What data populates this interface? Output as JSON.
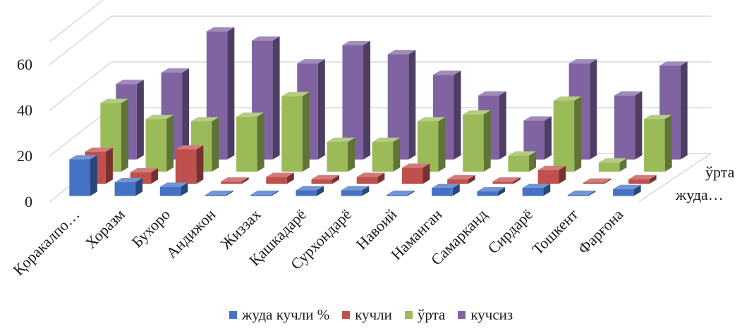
{
  "chart_data": {
    "type": "bar",
    "subtype": "3d-column",
    "title": "",
    "xlabel": "",
    "ylabel": "",
    "ylim": [
      0,
      70
    ],
    "yticks": [
      0,
      20,
      40,
      60
    ],
    "grid": true,
    "legend_position": "bottom",
    "categories": [
      "Қоракалпо…",
      "Хоразм",
      "Бухоро",
      "Андижон",
      "Жиззах",
      "Қашкадарё",
      "Сурхондарё",
      "Навоий",
      "Наманган",
      "Самарканд",
      "Сирдарё",
      "Тошкент",
      "Фарғона"
    ],
    "depth_labels": [
      "ўрта",
      "жуда…"
    ],
    "series": [
      {
        "name": "жуда кучли %",
        "color": "#4472C4",
        "values": [
          16,
          6,
          4,
          0.5,
          0.5,
          2.5,
          2.5,
          0.5,
          3.5,
          2,
          3.5,
          0.5,
          3
        ]
      },
      {
        "name": "кучли",
        "color": "#C0504D",
        "values": [
          14,
          5,
          15,
          1,
          3,
          2,
          3,
          7,
          2,
          1,
          6,
          0.5,
          2
        ]
      },
      {
        "name": "ўрта",
        "color": "#9BBB59",
        "values": [
          30,
          23,
          22,
          24,
          33,
          13,
          13,
          22,
          25,
          7,
          31,
          4,
          23
        ]
      },
      {
        "name": "кучсиз",
        "color": "#8064A2",
        "values": [
          33,
          38,
          56,
          52,
          42,
          50,
          46,
          37,
          28,
          17,
          42,
          28,
          41
        ]
      }
    ]
  }
}
